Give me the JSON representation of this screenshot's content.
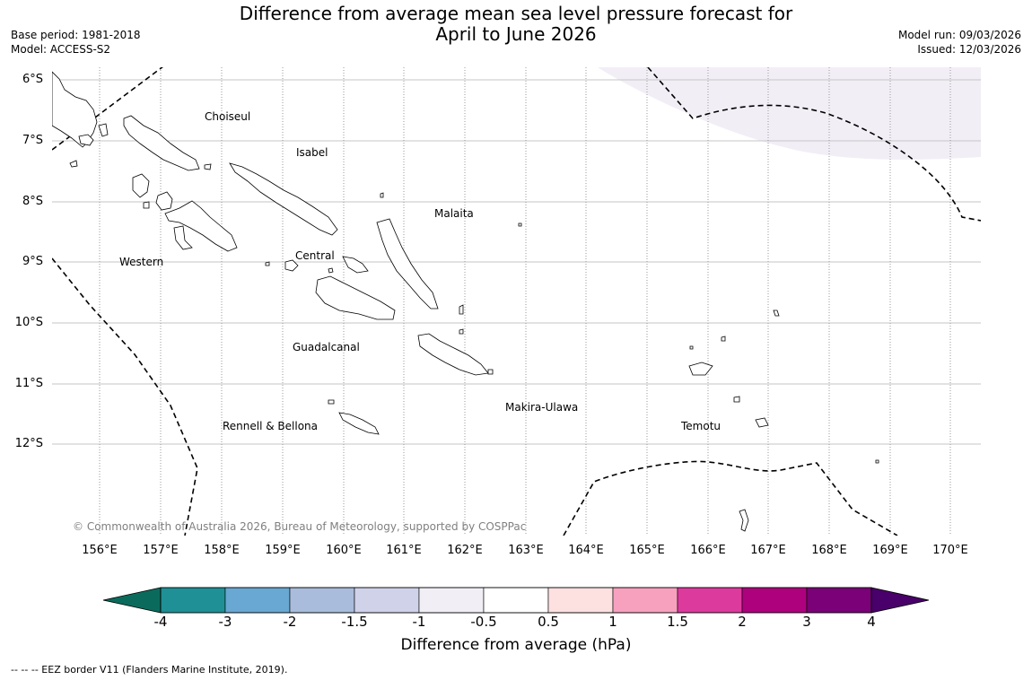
{
  "header": {
    "title_line1": "Difference from average mean sea level pressure forecast for",
    "title_line2": "April to June 2026",
    "base_period": "Base period: 1981-2018",
    "model": "Model: ACCESS-S2",
    "model_run": "Model run: 09/03/2026",
    "issued": "Issued: 12/03/2026"
  },
  "map": {
    "lat_labels": [
      "6°S",
      "7°S",
      "8°S",
      "9°S",
      "10°S",
      "11°S",
      "12°S"
    ],
    "lon_labels": [
      "156°E",
      "157°E",
      "158°E",
      "159°E",
      "160°E",
      "161°E",
      "162°E",
      "163°E",
      "164°E",
      "165°E",
      "166°E",
      "167°E",
      "168°E",
      "169°E",
      "170°E"
    ],
    "regions": {
      "choiseul": "Choiseul",
      "isabel": "Isabel",
      "malaita": "Malaita",
      "western": "Western",
      "central": "Central",
      "guadalcanal": "Guadalcanal",
      "makira_ulawa": "Makira-Ulawa",
      "rennell_bellona": "Rennell & Bellona",
      "temotu": "Temotu"
    },
    "copyright": "© Commonwealth of Australia 2026, Bureau of Meteorology, supported by COSPPac",
    "shaded_anomaly_range": "-1 to -0.5"
  },
  "colorbar": {
    "title": "Difference from average (hPa)",
    "ticks": [
      "-4",
      "-3",
      "-2",
      "-1.5",
      "-1",
      "-0.5",
      "0.5",
      "1",
      "1.5",
      "2",
      "3",
      "4"
    ],
    "colors": {
      "extend_low": "#0a6b5c",
      "bins": [
        "#1e9096",
        "#68a8d2",
        "#a9bcdc",
        "#cfd2e8",
        "#f2eef6",
        "#ffffff",
        "#fde0e0",
        "#f7a1bf",
        "#dd3a9e",
        "#ae017e",
        "#7a0177"
      ],
      "extend_high": "#49006a"
    }
  },
  "legend": {
    "footnote": "--  --  -- EEZ border V11 (Flanders Marine Institute, 2019)."
  }
}
